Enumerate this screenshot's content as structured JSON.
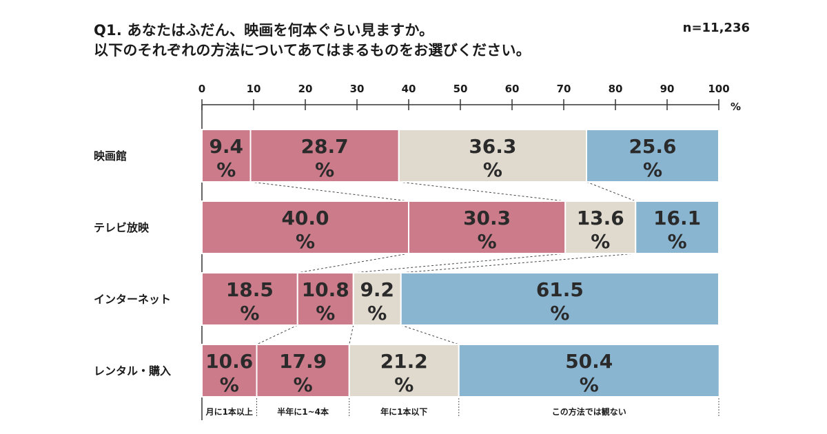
{
  "title": {
    "line1": "Q1. あなたはふだん、映画を何本ぐらい見ますか。",
    "line2": "以下のそれぞれの方法についてあてはまるものをお選びください。"
  },
  "sample_size": "n=11,236",
  "colors": {
    "monthly": "#cc7b8a",
    "half_year": "#cc7b8a",
    "yearly": "#e0d9ce",
    "never": "#8ab5d1"
  },
  "chart_data": {
    "type": "bar",
    "orientation": "horizontal",
    "stacked": true,
    "x_unit": "%",
    "xlim": [
      0,
      100
    ],
    "x_ticks": [
      0,
      10,
      20,
      30,
      40,
      50,
      60,
      70,
      80,
      90,
      100
    ],
    "categories": [
      "映画館",
      "テレビ放映",
      "インターネット",
      "レンタル・購入"
    ],
    "series": [
      {
        "name": "月に1本以上",
        "color_key": "monthly",
        "values": [
          9.4,
          40.0,
          18.5,
          10.6
        ]
      },
      {
        "name": "半年に1~4本",
        "color_key": "half_year",
        "values": [
          28.7,
          30.3,
          10.8,
          17.9
        ]
      },
      {
        "name": "年に1本以下",
        "color_key": "yearly",
        "values": [
          36.3,
          13.6,
          9.2,
          21.2
        ]
      },
      {
        "name": "この方法では観ない",
        "color_key": "never",
        "values": [
          25.6,
          16.1,
          61.5,
          50.4
        ]
      }
    ],
    "value_suffix": "%",
    "legend_placement": "bottom",
    "grid": false,
    "connector_lines": true
  }
}
